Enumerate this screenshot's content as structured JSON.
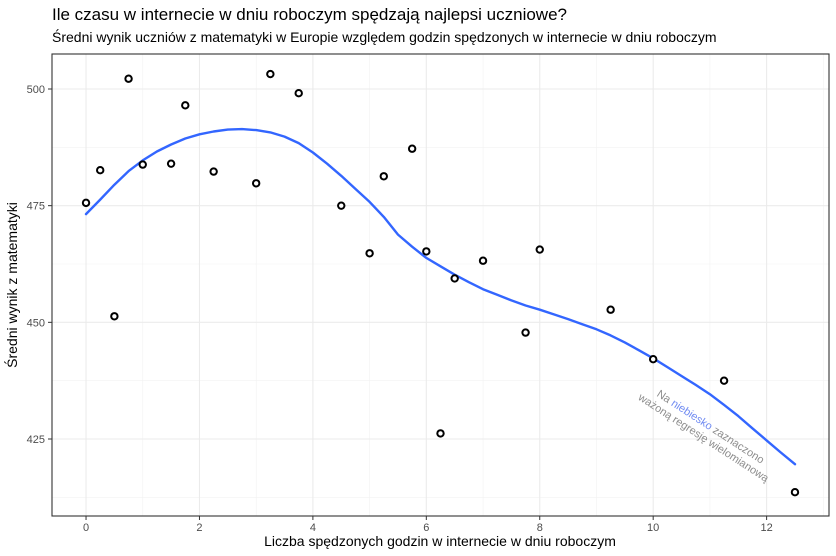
{
  "chart_data": {
    "type": "scatter",
    "title": "Ile czasu w internecie w dniu roboczym spędzają najlepsi uczniowe?",
    "subtitle": "Średni wynik uczniów z matematyki w Europie względem godzin spędzonych w internecie w dniu roboczym",
    "xlabel": "Liczba spędzonych godzin w internecie w dniu roboczym",
    "ylabel": "Średni wynik z matematyki",
    "xlim": [
      -0.6,
      13.1
    ],
    "ylim": [
      408.5,
      507.5
    ],
    "x_ticks": [
      0,
      2,
      4,
      6,
      8,
      10,
      12
    ],
    "y_ticks": [
      425,
      450,
      475,
      500
    ],
    "grid": true,
    "points": [
      {
        "x": 0.0,
        "y": 475.6
      },
      {
        "x": 0.25,
        "y": 482.6
      },
      {
        "x": 0.5,
        "y": 451.3
      },
      {
        "x": 0.75,
        "y": 502.2
      },
      {
        "x": 1.0,
        "y": 483.8
      },
      {
        "x": 1.5,
        "y": 484.0
      },
      {
        "x": 1.75,
        "y": 496.5
      },
      {
        "x": 2.25,
        "y": 482.3
      },
      {
        "x": 3.0,
        "y": 479.8
      },
      {
        "x": 3.25,
        "y": 503.2
      },
      {
        "x": 3.75,
        "y": 499.1
      },
      {
        "x": 4.5,
        "y": 475.0
      },
      {
        "x": 5.0,
        "y": 464.8
      },
      {
        "x": 5.25,
        "y": 481.3
      },
      {
        "x": 5.75,
        "y": 487.2
      },
      {
        "x": 6.0,
        "y": 465.2
      },
      {
        "x": 6.25,
        "y": 426.2
      },
      {
        "x": 6.5,
        "y": 459.4
      },
      {
        "x": 7.0,
        "y": 463.2
      },
      {
        "x": 7.75,
        "y": 447.8
      },
      {
        "x": 8.0,
        "y": 465.6
      },
      {
        "x": 9.25,
        "y": 452.7
      },
      {
        "x": 10.0,
        "y": 442.1
      },
      {
        "x": 11.25,
        "y": 437.5
      },
      {
        "x": 12.5,
        "y": 413.6
      }
    ],
    "smooth_line": {
      "name": "ważona regresja wielomianowa",
      "color": "#3366ff",
      "x": [
        0,
        0.25,
        0.5,
        0.75,
        1.0,
        1.25,
        1.5,
        1.75,
        2.0,
        2.25,
        2.5,
        2.75,
        3.0,
        3.25,
        3.5,
        3.75,
        4.0,
        4.25,
        4.5,
        4.75,
        5.0,
        5.25,
        5.5,
        5.75,
        6.0,
        6.25,
        6.5,
        6.75,
        7.0,
        7.25,
        7.5,
        7.75,
        8.0,
        8.25,
        8.5,
        8.75,
        9.0,
        9.25,
        9.5,
        9.75,
        10.0,
        10.25,
        10.5,
        10.75,
        11.0,
        11.25,
        11.5,
        11.75,
        12.0,
        12.25,
        12.5
      ],
      "y": [
        473.2,
        476.3,
        479.5,
        482.4,
        484.7,
        486.6,
        488.1,
        489.4,
        490.3,
        490.9,
        491.3,
        491.4,
        491.2,
        490.7,
        489.8,
        488.4,
        486.4,
        484.0,
        481.4,
        478.6,
        475.8,
        472.6,
        468.8,
        466.2,
        463.8,
        462.0,
        460.2,
        458.6,
        457.1,
        455.9,
        454.7,
        453.6,
        452.7,
        451.7,
        450.7,
        449.6,
        448.5,
        447.2,
        445.7,
        444.0,
        442.3,
        440.4,
        438.5,
        436.6,
        434.6,
        432.3,
        429.9,
        427.3,
        424.7,
        422.1,
        419.6
      ]
    },
    "annotation": {
      "part1": "Na ",
      "highlight": "niebiesko",
      "part2": " zaznaczono",
      "line2": "ważoną regresję wielomianową",
      "highlight_color": "#6f8af2"
    }
  }
}
